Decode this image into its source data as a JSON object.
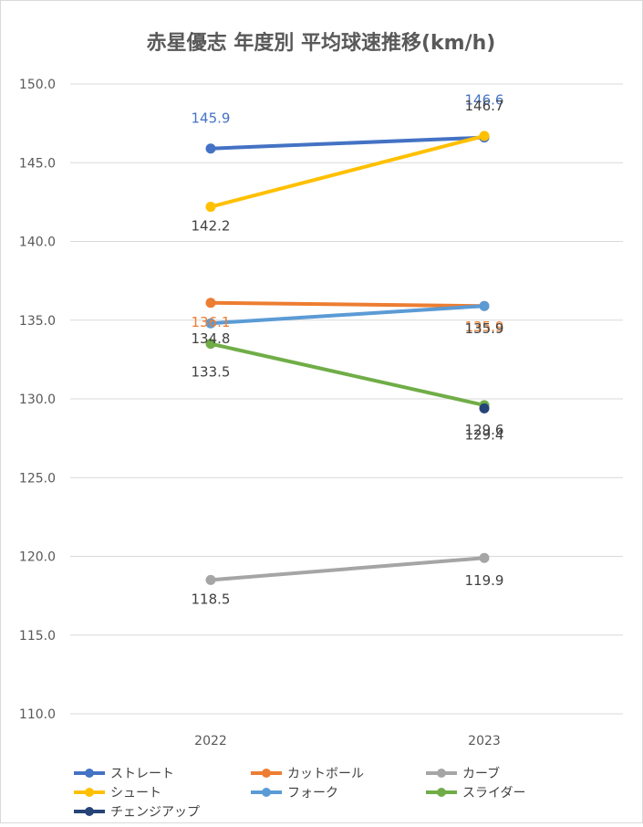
{
  "chart_data": {
    "type": "line",
    "title": "赤星優志 年度別 平均球速推移(km/h)",
    "xlabel": "",
    "ylabel": "",
    "categories": [
      "2022",
      "2023"
    ],
    "ylim": [
      110.0,
      150.0
    ],
    "y_ticks": [
      "110.0",
      "115.0",
      "120.0",
      "125.0",
      "130.0",
      "135.0",
      "140.0",
      "145.0",
      "150.0"
    ],
    "grid": true,
    "legend_position": "bottom",
    "series": [
      {
        "name": "ストレート",
        "color": "#4472C4",
        "values": [
          145.9,
          146.6
        ],
        "labels": [
          "145.9",
          "146.6"
        ],
        "label_color": "#4472C4"
      },
      {
        "name": "カットボール",
        "color": "#ED7D31",
        "values": [
          136.1,
          135.9
        ],
        "labels": [
          "136.1",
          "135.9"
        ],
        "label_color": "#ED7D31"
      },
      {
        "name": "カーブ",
        "color": "#A5A5A5",
        "values": [
          118.5,
          119.9
        ],
        "labels": [
          "118.5",
          "119.9"
        ],
        "label_color": "#404040"
      },
      {
        "name": "シュート",
        "color": "#FFC000",
        "values": [
          142.2,
          146.7
        ],
        "labels": [
          "142.2",
          "146.7"
        ],
        "label_color": "#404040"
      },
      {
        "name": "フォーク",
        "color": "#5B9BD5",
        "values": [
          134.8,
          135.9
        ],
        "labels": [
          "134.8",
          "135.9"
        ],
        "label_color": "#404040"
      },
      {
        "name": "スライダー",
        "color": "#70AD47",
        "values": [
          133.5,
          129.6
        ],
        "labels": [
          "133.5",
          "129.6"
        ],
        "label_color": "#404040"
      },
      {
        "name": "チェンジアップ",
        "color": "#264478",
        "values": [
          null,
          129.4
        ],
        "labels": [
          null,
          "129.4"
        ],
        "label_color": "#404040"
      }
    ]
  }
}
